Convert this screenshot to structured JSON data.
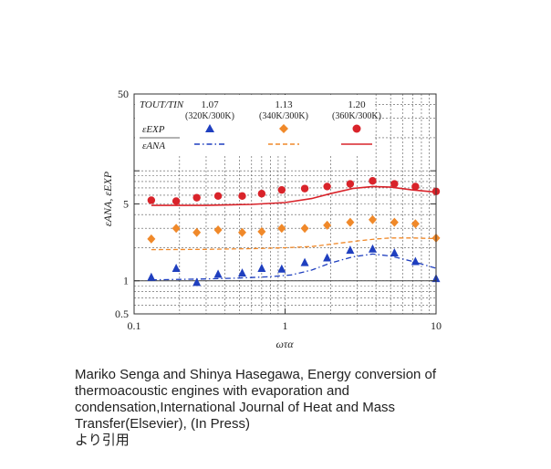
{
  "chart_data": {
    "type": "scatter",
    "x_scale": "log",
    "y_scale": "log",
    "xlim": [
      0.1,
      10
    ],
    "ylim": [
      0.5,
      50
    ],
    "xlabel": "ωτα",
    "ylabel": "εANA, εEXP",
    "x_ticks": [
      "0.1",
      "1",
      "10"
    ],
    "y_ticks": [
      "0.5",
      "1",
      "5",
      "50"
    ],
    "grid": true,
    "legend_position": "top",
    "legend": {
      "header": "TOUT/TIN",
      "exp_label": "εEXP",
      "ana_label": "εANA",
      "columns": [
        {
          "ratio": "1.07",
          "temps": "(320K/300K)"
        },
        {
          "ratio": "1.13",
          "temps": "(340K/300K)"
        },
        {
          "ratio": "1.20",
          "temps": "(360K/300K)"
        }
      ]
    },
    "series": [
      {
        "ratio": "1.07",
        "color": "#1f3fbf",
        "marker": "triangle",
        "line_style": "dash-dot",
        "exp_x": [
          0.13,
          0.19,
          0.26,
          0.36,
          0.52,
          0.7,
          0.95,
          1.35,
          1.9,
          2.7,
          3.8,
          5.3,
          7.3,
          10
        ],
        "exp_y": [
          1.08,
          1.3,
          0.97,
          1.15,
          1.18,
          1.3,
          1.28,
          1.47,
          1.62,
          1.9,
          1.95,
          1.8,
          1.5,
          1.05
        ],
        "ana_x": [
          0.13,
          0.2,
          0.3,
          0.5,
          0.8,
          1.1,
          1.5,
          2,
          2.8,
          3.8,
          5,
          7,
          10
        ],
        "ana_y": [
          1.02,
          1.03,
          1.04,
          1.06,
          1.09,
          1.13,
          1.25,
          1.45,
          1.65,
          1.75,
          1.68,
          1.5,
          1.3
        ]
      },
      {
        "ratio": "1.13",
        "color": "#f0892a",
        "marker": "diamond",
        "line_style": "dashed",
        "exp_x": [
          0.13,
          0.19,
          0.26,
          0.36,
          0.52,
          0.7,
          0.95,
          1.35,
          1.9,
          2.7,
          3.8,
          5.3,
          7.3,
          10
        ],
        "exp_y": [
          2.4,
          3.0,
          2.75,
          2.9,
          2.75,
          2.8,
          3.0,
          3.0,
          3.2,
          3.4,
          3.6,
          3.4,
          3.3,
          2.45
        ],
        "ana_x": [
          0.13,
          0.3,
          0.6,
          1,
          1.5,
          2,
          3,
          4,
          5,
          7,
          10
        ],
        "ana_y": [
          1.92,
          1.93,
          1.96,
          2.0,
          2.05,
          2.15,
          2.3,
          2.4,
          2.45,
          2.45,
          2.42
        ]
      },
      {
        "ratio": "1.20",
        "color": "#d9232a",
        "marker": "circle",
        "line_style": "solid",
        "exp_x": [
          0.13,
          0.19,
          0.26,
          0.36,
          0.52,
          0.7,
          0.95,
          1.35,
          1.9,
          2.7,
          3.8,
          5.3,
          7.3,
          10
        ],
        "exp_y": [
          5.4,
          5.3,
          5.7,
          5.9,
          5.9,
          6.2,
          6.7,
          6.9,
          7.2,
          7.6,
          8.1,
          7.6,
          7.2,
          6.5
        ],
        "ana_x": [
          0.13,
          0.3,
          0.6,
          1,
          1.5,
          2,
          2.8,
          3.8,
          5,
          7,
          10
        ],
        "ana_y": [
          4.85,
          4.85,
          4.95,
          5.15,
          5.6,
          6.2,
          6.9,
          7.2,
          7.1,
          6.7,
          6.4
        ]
      }
    ]
  },
  "caption": {
    "lines": [
      "Mariko Senga and Shinya Hasegawa, Energy conversion of",
      "thermoacoustic engines with evaporation and",
      "condensation,International Journal of Heat and Mass",
      "Transfer(Elsevier), (In Press)",
      "より引用"
    ]
  }
}
